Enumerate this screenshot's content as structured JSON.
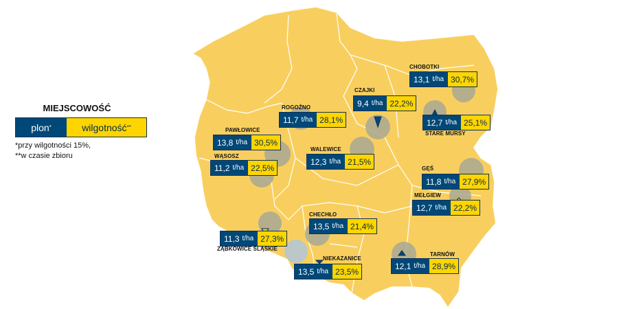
{
  "legend": {
    "title": "MIEJSCOWOŚĆ",
    "plon_label": "plon",
    "plon_mark": "*",
    "wilgotnosc_label": "wilgotność",
    "wilgotnosc_mark": "**",
    "note1": "*przy wilgotności 15%,",
    "note2": "**w czasie zbioru"
  },
  "unit": "t/ha",
  "colors": {
    "land": "#f8cf5f",
    "border": "#ffffff",
    "plon_bg": "#004877",
    "wilgotnosc_bg": "#ffd500",
    "marker": "#a8a895"
  },
  "sites": [
    {
      "name": "CHOBOTKI",
      "plon": "13,1",
      "wilgotnosc": "30,7%"
    },
    {
      "name": "CZAJKI",
      "plon": "9,4",
      "wilgotnosc": "22,2%"
    },
    {
      "name": "ROGOŹNO",
      "plon": "11,7",
      "wilgotnosc": "28,1%"
    },
    {
      "name": "STARE MURSY",
      "plon": "12,7",
      "wilgotnosc": "25,1%"
    },
    {
      "name": "PAWŁOWICE",
      "plon": "13,8",
      "wilgotnosc": "30,5%"
    },
    {
      "name": "WALEWICE",
      "plon": "12,3",
      "wilgotnosc": "21,5%"
    },
    {
      "name": "WĄSOSZ",
      "plon": "11,2",
      "wilgotnosc": "22,5%"
    },
    {
      "name": "GĘŚ",
      "plon": "11,8",
      "wilgotnosc": "27,9%"
    },
    {
      "name": "MEŁGIEW",
      "plon": "12,7",
      "wilgotnosc": "22,2%"
    },
    {
      "name": "CHECHŁO",
      "plon": "13,5",
      "wilgotnosc": "21,4%"
    },
    {
      "name": "ZĄBKOWICE ŚLĄSKIE",
      "plon": "11,3",
      "wilgotnosc": "27,3%"
    },
    {
      "name": "TARNÓW",
      "plon": "12,1",
      "wilgotnosc": "28,9%"
    },
    {
      "name": "NIEKAZANICE",
      "plon": "13,5",
      "wilgotnosc": "23,5%"
    }
  ]
}
